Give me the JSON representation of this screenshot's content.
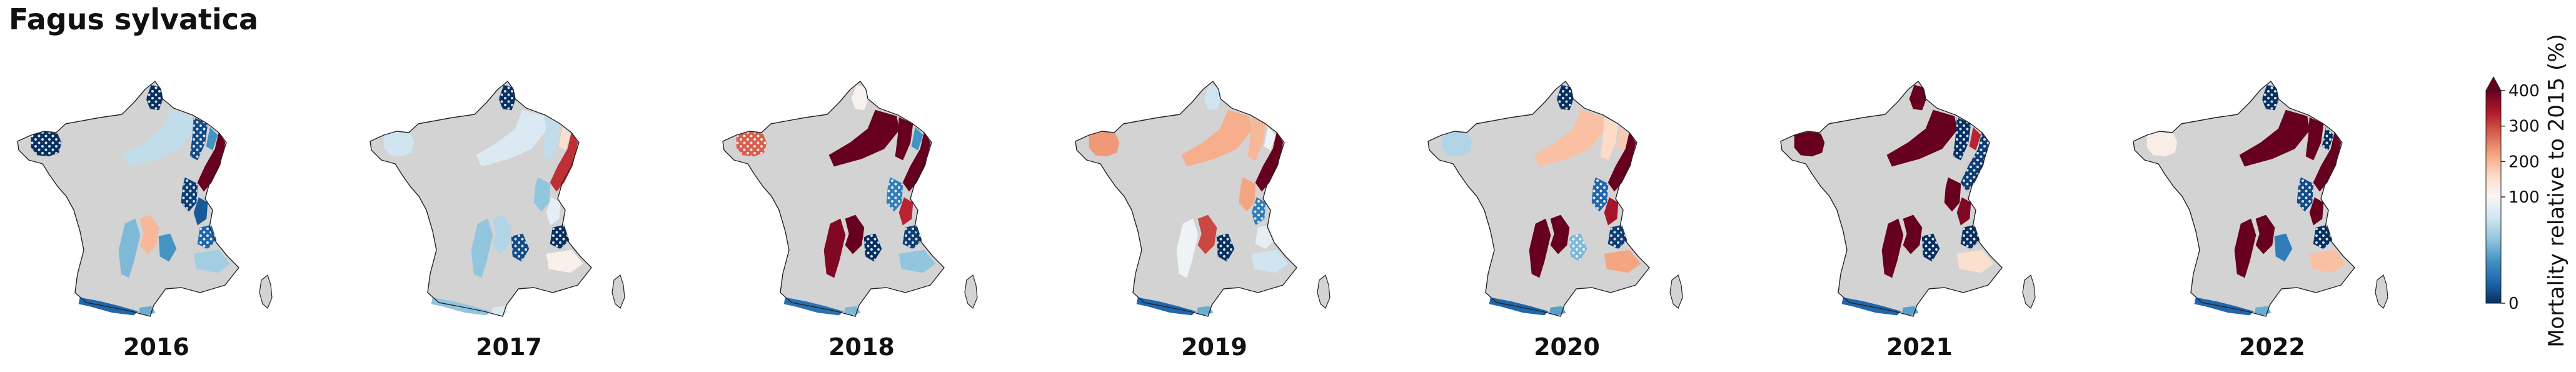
{
  "title": "Fagus sylvatica",
  "colorbar": {
    "label": "Mortality relative to 2015 (%)",
    "ticks": [
      {
        "value": 0,
        "label": "0"
      },
      {
        "value": 100,
        "label": "100"
      },
      {
        "value": 200,
        "label": "200"
      },
      {
        "value": 300,
        "label": "300"
      },
      {
        "value": 400,
        "label": "400"
      }
    ],
    "colors": {
      "low": "#053061",
      "mid": "#f7f7f7",
      "high": "#67001f"
    },
    "extend": "max"
  },
  "colors": {
    "no_data": "#d3d3d3",
    "outline": "#222222",
    "hatch": "#ffffff"
  },
  "panels": [
    {
      "year": "2016",
      "regions": [
        {
          "id": "bretagne",
          "value": 0,
          "hatched": true
        },
        {
          "id": "ardennes",
          "value": 0,
          "hatched": true
        },
        {
          "id": "champagne",
          "value": 75
        },
        {
          "id": "lorraine-w",
          "value": 10,
          "hatched": true
        },
        {
          "id": "lorraine-e",
          "value": 40
        },
        {
          "id": "vosges",
          "value": 450
        },
        {
          "id": "jura-n",
          "value": 5,
          "hatched": true
        },
        {
          "id": "jura-s",
          "value": 15
        },
        {
          "id": "alpes-n",
          "value": 20,
          "hatched": true
        },
        {
          "id": "alpes-s",
          "value": 65
        },
        {
          "id": "massif-central-w",
          "value": 55
        },
        {
          "id": "massif-central-e",
          "value": 200
        },
        {
          "id": "cevennes",
          "value": 40
        },
        {
          "id": "pyrenees-w",
          "value": 20
        },
        {
          "id": "pyrenees-e",
          "value": 50
        }
      ]
    },
    {
      "year": "2017",
      "regions": [
        {
          "id": "bretagne",
          "value": 80
        },
        {
          "id": "ardennes",
          "value": 0,
          "hatched": true
        },
        {
          "id": "champagne",
          "value": 85
        },
        {
          "id": "lorraine-w",
          "value": 75
        },
        {
          "id": "lorraine-e",
          "value": 150
        },
        {
          "id": "vosges",
          "value": 320
        },
        {
          "id": "jura-n",
          "value": 60
        },
        {
          "id": "jura-s",
          "value": 90
        },
        {
          "id": "alpes-n",
          "value": 0,
          "hatched": true
        },
        {
          "id": "alpes-s",
          "value": 115
        },
        {
          "id": "massif-central-w",
          "value": 60
        },
        {
          "id": "massif-central-e",
          "value": 70
        },
        {
          "id": "cevennes",
          "value": 10,
          "hatched": true
        },
        {
          "id": "pyrenees-w",
          "value": 60
        },
        {
          "id": "pyrenees-e",
          "value": 85
        }
      ]
    },
    {
      "year": "2018",
      "regions": [
        {
          "id": "bretagne",
          "value": 280,
          "hatched": true
        },
        {
          "id": "ardennes",
          "value": 110
        },
        {
          "id": "champagne",
          "value": 450
        },
        {
          "id": "lorraine-w",
          "value": 450
        },
        {
          "id": "lorraine-e",
          "value": 40
        },
        {
          "id": "vosges",
          "value": 450
        },
        {
          "id": "jura-n",
          "value": 30,
          "hatched": true
        },
        {
          "id": "jura-s",
          "value": 330
        },
        {
          "id": "alpes-n",
          "value": 5,
          "hatched": true
        },
        {
          "id": "alpes-s",
          "value": 60
        },
        {
          "id": "massif-central-w",
          "value": 380
        },
        {
          "id": "massif-central-e",
          "value": 450
        },
        {
          "id": "cevennes",
          "value": 0,
          "hatched": true
        },
        {
          "id": "pyrenees-w",
          "value": 25
        },
        {
          "id": "pyrenees-e",
          "value": 55
        }
      ]
    },
    {
      "year": "2019",
      "regions": [
        {
          "id": "bretagne",
          "value": 230
        },
        {
          "id": "ardennes",
          "value": 80
        },
        {
          "id": "champagne",
          "value": 210
        },
        {
          "id": "lorraine-w",
          "value": 200
        },
        {
          "id": "lorraine-e",
          "value": 95
        },
        {
          "id": "vosges",
          "value": 450
        },
        {
          "id": "jura-n",
          "value": 220
        },
        {
          "id": "jura-s",
          "value": 30,
          "hatched": true
        },
        {
          "id": "alpes-n",
          "value": 90
        },
        {
          "id": "alpes-s",
          "value": 80
        },
        {
          "id": "massif-central-w",
          "value": 95
        },
        {
          "id": "massif-central-e",
          "value": 300
        },
        {
          "id": "cevennes",
          "value": 0,
          "hatched": true
        },
        {
          "id": "pyrenees-w",
          "value": 20
        },
        {
          "id": "pyrenees-e",
          "value": 50
        }
      ]
    },
    {
      "year": "2020",
      "regions": [
        {
          "id": "bretagne",
          "value": 70
        },
        {
          "id": "ardennes",
          "value": 0,
          "hatched": true
        },
        {
          "id": "champagne",
          "value": 190
        },
        {
          "id": "lorraine-w",
          "value": 160
        },
        {
          "id": "lorraine-e",
          "value": 180
        },
        {
          "id": "vosges",
          "value": 450
        },
        {
          "id": "jura-n",
          "value": 20,
          "hatched": true
        },
        {
          "id": "jura-s",
          "value": 350
        },
        {
          "id": "alpes-n",
          "value": 5,
          "hatched": true
        },
        {
          "id": "alpes-s",
          "value": 220
        },
        {
          "id": "massif-central-w",
          "value": 450
        },
        {
          "id": "massif-central-e",
          "value": 400
        },
        {
          "id": "cevennes",
          "value": 55,
          "hatched": true
        },
        {
          "id": "pyrenees-w",
          "value": 20
        },
        {
          "id": "pyrenees-e",
          "value": 45
        }
      ]
    },
    {
      "year": "2021",
      "regions": [
        {
          "id": "bretagne",
          "value": 450
        },
        {
          "id": "ardennes",
          "value": 450
        },
        {
          "id": "champagne",
          "value": 450
        },
        {
          "id": "lorraine-w",
          "value": 0,
          "hatched": true
        },
        {
          "id": "lorraine-e",
          "value": 330
        },
        {
          "id": "vosges",
          "value": 5,
          "hatched": true
        },
        {
          "id": "jura-n",
          "value": 450
        },
        {
          "id": "jura-s",
          "value": 380
        },
        {
          "id": "alpes-n",
          "value": 0,
          "hatched": true
        },
        {
          "id": "alpes-s",
          "value": 150
        },
        {
          "id": "massif-central-w",
          "value": 450
        },
        {
          "id": "massif-central-e",
          "value": 450
        },
        {
          "id": "cevennes",
          "value": 0,
          "hatched": true
        },
        {
          "id": "pyrenees-w",
          "value": 20
        },
        {
          "id": "pyrenees-e",
          "value": 45
        }
      ]
    },
    {
      "year": "2022",
      "regions": [
        {
          "id": "bretagne",
          "value": 120
        },
        {
          "id": "ardennes",
          "value": 0,
          "hatched": true
        },
        {
          "id": "champagne",
          "value": 450
        },
        {
          "id": "lorraine-w",
          "value": 450
        },
        {
          "id": "lorraine-e",
          "value": 0,
          "hatched": true
        },
        {
          "id": "vosges",
          "value": 450
        },
        {
          "id": "jura-n",
          "value": 10,
          "hatched": true
        },
        {
          "id": "jura-s",
          "value": 450
        },
        {
          "id": "alpes-n",
          "value": 0,
          "hatched": true
        },
        {
          "id": "alpes-s",
          "value": 190
        },
        {
          "id": "massif-central-w",
          "value": 450
        },
        {
          "id": "massif-central-e",
          "value": 420
        },
        {
          "id": "cevennes",
          "value": 30
        },
        {
          "id": "pyrenees-w",
          "value": 20
        },
        {
          "id": "pyrenees-e",
          "value": 50
        }
      ]
    }
  ]
}
